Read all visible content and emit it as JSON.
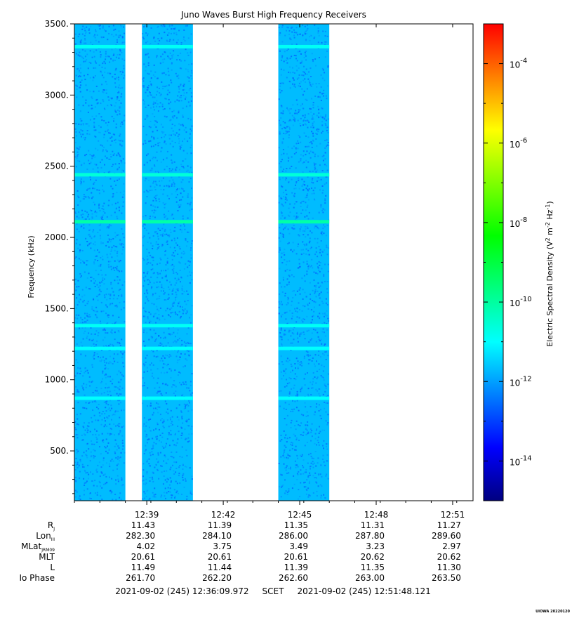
{
  "chart_data": {
    "type": "heatmap",
    "title": "Juno Waves Burst High Frequency Receivers",
    "ylabel": "Frequency (kHz)",
    "ylim": [
      150,
      3500
    ],
    "y_ticks": [
      500,
      1000,
      1500,
      2000,
      2500,
      3000,
      3500
    ],
    "y_tick_labels": [
      "500.",
      "1000.",
      "1500.",
      "2000.",
      "2500.",
      "3000.",
      "3500."
    ],
    "x_tick_labels": [
      "12:39",
      "12:42",
      "12:45",
      "12:48",
      "12:51"
    ],
    "x_ticks_minutes": [
      2.84,
      5.84,
      8.84,
      11.84,
      14.84
    ],
    "xlim_minutes": [
      0,
      15.64
    ],
    "data_segments_minutes": [
      [
        0,
        2.0
      ],
      [
        2.65,
        4.65
      ],
      [
        8.0,
        10.0
      ]
    ],
    "background_log_density": -11.7,
    "emission_lines": [
      {
        "freq_khz": 3340,
        "log_density": -10.9
      },
      {
        "freq_khz": 2440,
        "log_density": -10.6
      },
      {
        "freq_khz": 2110,
        "log_density": -10.1
      },
      {
        "freq_khz": 1380,
        "log_density": -10.9
      },
      {
        "freq_khz": 1220,
        "log_density": -11.0
      },
      {
        "freq_khz": 870,
        "log_density": -11.0
      }
    ],
    "colorbar": {
      "label": "Electric Spectral Density (V² m⁻² Hz⁻¹)",
      "label_main": "Electric Spectral Density (V",
      "label_sup1": "2",
      "label_mid": " m",
      "label_sup2": "-2",
      "label_mid2": " Hz",
      "label_sup3": "-1",
      "label_end": ")",
      "log_range": [
        -15,
        -3
      ],
      "tick_exponents": [
        -4,
        -6,
        -8,
        -10,
        -12,
        -14
      ],
      "tick_labels": [
        "-4",
        "-6",
        "-8",
        "-10",
        "-12",
        "-14"
      ],
      "tick_base": "10",
      "colors": [
        "#000080",
        "#0000ff",
        "#0080ff",
        "#00ffff",
        "#00ff80",
        "#00ff00",
        "#80ff00",
        "#ffff00",
        "#ff8000",
        "#ff0000"
      ]
    },
    "ephemeris": {
      "row_labels": [
        {
          "base": "R",
          "sub": "J"
        },
        {
          "base": "Lon",
          "sub": "III"
        },
        {
          "base": "MLat",
          "sub": "JRM09"
        },
        {
          "base": "MLT",
          "sub": ""
        },
        {
          "base": "L",
          "sub": ""
        },
        {
          "base": "Io Phase",
          "sub": ""
        }
      ],
      "rows": [
        [
          "11.43",
          "11.39",
          "11.35",
          "11.31",
          "11.27"
        ],
        [
          "282.30",
          "284.10",
          "286.00",
          "287.80",
          "289.60"
        ],
        [
          "4.02",
          "3.75",
          "3.49",
          "3.23",
          "2.97"
        ],
        [
          "20.61",
          "20.61",
          "20.61",
          "20.62",
          "20.62"
        ],
        [
          "11.49",
          "11.44",
          "11.39",
          "11.35",
          "11.30"
        ],
        [
          "261.70",
          "262.20",
          "262.60",
          "263.00",
          "263.50"
        ]
      ]
    },
    "time_range_text": "2021-09-02 (245) 12:36:09.972     SCET     2021-09-02 (245) 12:51:48.121",
    "credit": "UIOWA 20220120"
  }
}
